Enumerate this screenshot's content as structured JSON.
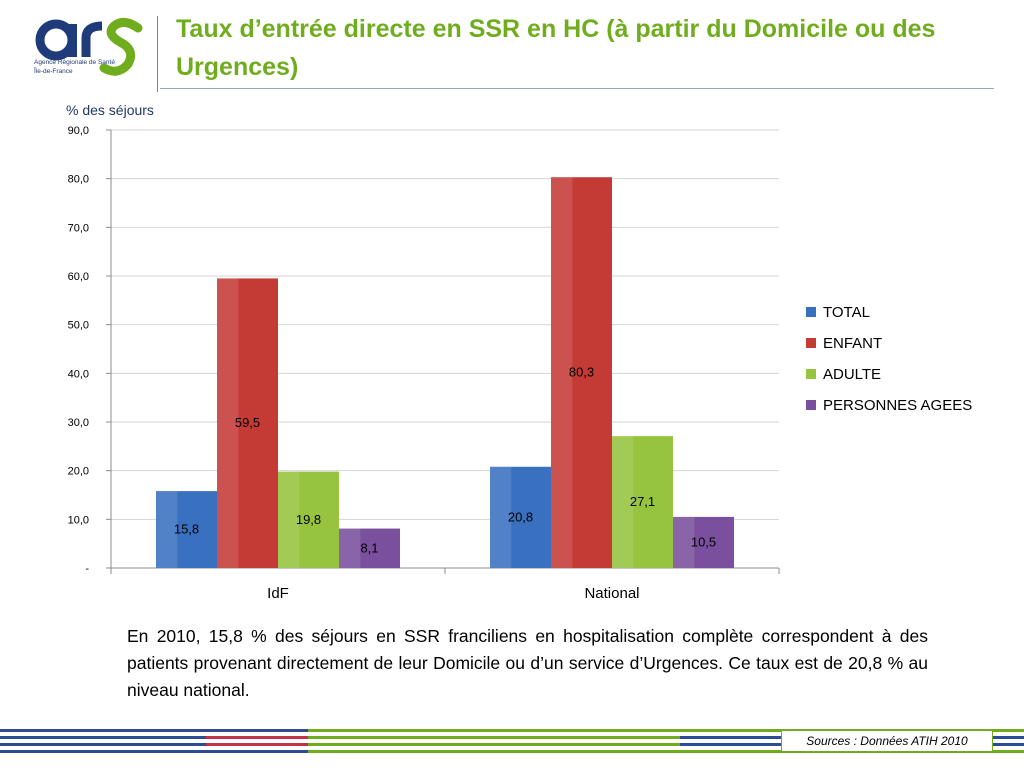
{
  "header": {
    "title": "Taux d’entrée directe en SSR en HC (à partir du Domicile ou des Urgences)",
    "logo": {
      "mark": "ars",
      "line1": "Agence Régionale de Santé",
      "line2": "Île-de-France",
      "colors": {
        "navy": "#1f3b7a",
        "green": "#70ad1e"
      }
    }
  },
  "chart_data": {
    "type": "bar",
    "ylabel": "% des séjours",
    "xlabel": "",
    "ylim": [
      0,
      90
    ],
    "yticks": [
      "-",
      "10,0",
      "20,0",
      "30,0",
      "40,0",
      "50,0",
      "60,0",
      "70,0",
      "80,0",
      "90,0"
    ],
    "categories": [
      "IdF",
      "National"
    ],
    "series": [
      {
        "name": "TOTAL",
        "color": "#3a70c0",
        "values": [
          15.8,
          20.8
        ],
        "labels": [
          "15,8",
          "20,8"
        ]
      },
      {
        "name": "ENFANT",
        "color": "#c43b36",
        "values": [
          59.5,
          80.3
        ],
        "labels": [
          "59,5",
          "80,3"
        ]
      },
      {
        "name": "ADULTE",
        "color": "#96c43f",
        "values": [
          19.8,
          27.1
        ],
        "labels": [
          "19,8",
          "27,1"
        ]
      },
      {
        "name": "PERSONNES AGEES",
        "color": "#7a4f9e",
        "values": [
          8.1,
          10.5
        ],
        "labels": [
          "8,1",
          "10,5"
        ]
      }
    ],
    "grid": true,
    "legend": "right"
  },
  "caption": {
    "text": "En 2010, 15,8 % des séjours en SSR franciliens en hospitalisation complète correspondent à des patients provenant directement de leur Domicile ou d’un service d’Urgences. Ce taux est de 20,8 % au niveau national."
  },
  "footer": {
    "sources": "Sources :  Données ATIH 2010"
  }
}
